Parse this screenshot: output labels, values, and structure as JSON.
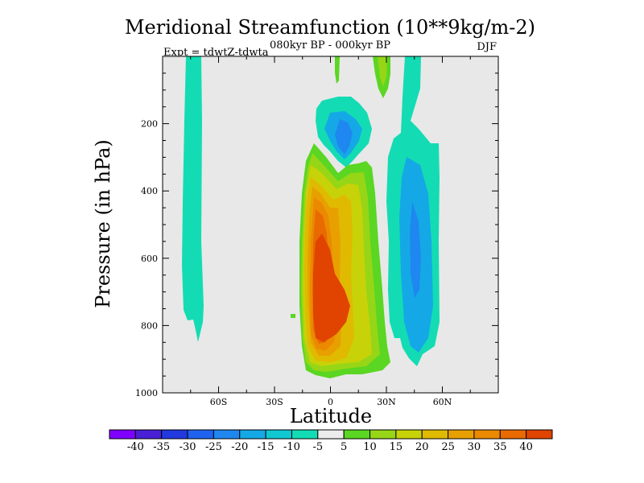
{
  "chart_data": {
    "type": "contour",
    "title": "Meridional Streamfunction (10**9kg/m-2)",
    "subtitle": "080kyr BP - 000kyr BP",
    "left_label": "Expt = tdwtZ-tdwta",
    "season": "DJF",
    "xlabel": "Latitude",
    "ylabel": "Pressure (in hPa)",
    "xlim": [
      -90,
      90
    ],
    "ylim": [
      1000,
      0
    ],
    "x_ticks": [
      {
        "value": -60,
        "label": "60S"
      },
      {
        "value": -30,
        "label": "30S"
      },
      {
        "value": 0,
        "label": "0"
      },
      {
        "value": 30,
        "label": "30N"
      },
      {
        "value": 60,
        "label": "60N"
      }
    ],
    "y_ticks": [
      {
        "value": 200,
        "label": "200"
      },
      {
        "value": 400,
        "label": "400"
      },
      {
        "value": 600,
        "label": "600"
      },
      {
        "value": 800,
        "label": "800"
      },
      {
        "value": 1000,
        "label": "1000"
      }
    ],
    "colorbar": {
      "labels": [
        "-40",
        "-35",
        "-30",
        "-25",
        "-20",
        "-15",
        "-10",
        "-5",
        "5",
        "10",
        "15",
        "20",
        "25",
        "30",
        "35",
        "40"
      ],
      "colors": [
        "#7f00ff",
        "#4a1fd6",
        "#2239e0",
        "#1f62f0",
        "#1f87f0",
        "#14a9e6",
        "#10c8d2",
        "#13dcb4",
        "#ececec",
        "#5ad623",
        "#96d616",
        "#c8d208",
        "#e0ba00",
        "#e8a000",
        "#eb8a00",
        "#e86a00",
        "#e04400"
      ]
    },
    "features": [
      {
        "name": "southern-cell",
        "sign": "negative",
        "value": -10,
        "lat_range": [
          -78,
          -68
        ],
        "pressure_range": [
          0,
          850
        ]
      },
      {
        "name": "upper-tropical-cell",
        "sign": "negative",
        "value": -25,
        "lat_range": [
          -5,
          15
        ],
        "pressure_range": [
          100,
          330
        ]
      },
      {
        "name": "main-positive-cell",
        "sign": "positive",
        "value": 40,
        "lat_range": [
          -15,
          20
        ],
        "pressure_range": [
          280,
          960
        ]
      },
      {
        "name": "northern-cell",
        "sign": "negative",
        "value": -20,
        "lat_range": [
          30,
          57
        ],
        "pressure_range": [
          0,
          930
        ]
      }
    ]
  }
}
